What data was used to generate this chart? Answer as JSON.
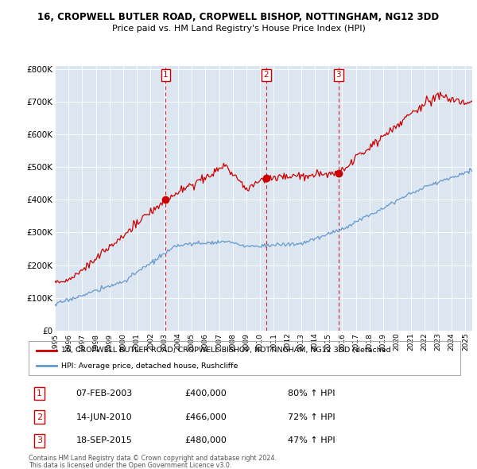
{
  "title": "16, CROPWELL BUTLER ROAD, CROPWELL BISHOP, NOTTINGHAM, NG12 3DD",
  "subtitle": "Price paid vs. HM Land Registry's House Price Index (HPI)",
  "xlim_start": 1995.0,
  "xlim_end": 2025.5,
  "ylim": [
    0,
    810000
  ],
  "yticks": [
    0,
    100000,
    200000,
    300000,
    400000,
    500000,
    600000,
    700000,
    800000
  ],
  "ytick_labels": [
    "£0",
    "£100K",
    "£200K",
    "£300K",
    "£400K",
    "£500K",
    "£600K",
    "£700K",
    "£800K"
  ],
  "red_line_color": "#cc0000",
  "blue_line_color": "#6699cc",
  "sales": [
    {
      "num": 1,
      "year": 2003.1,
      "price": 400000,
      "label": "07-FEB-2003",
      "amount": "£400,000",
      "pct": "80% ↑ HPI"
    },
    {
      "num": 2,
      "year": 2010.45,
      "price": 466000,
      "label": "14-JUN-2010",
      "amount": "£466,000",
      "pct": "72% ↑ HPI"
    },
    {
      "num": 3,
      "year": 2015.72,
      "price": 480000,
      "label": "18-SEP-2015",
      "amount": "£480,000",
      "pct": "47% ↑ HPI"
    }
  ],
  "legend_line1": "16, CROPWELL BUTLER ROAD, CROPWELL BISHOP, NOTTINGHAM, NG12 3DD (detached",
  "legend_line2": "HPI: Average price, detached house, Rushcliffe",
  "footnote1": "Contains HM Land Registry data © Crown copyright and database right 2024.",
  "footnote2": "This data is licensed under the Open Government Licence v3.0.",
  "bg_color": "#dce6f1",
  "fig_bg_color": "#ffffff"
}
